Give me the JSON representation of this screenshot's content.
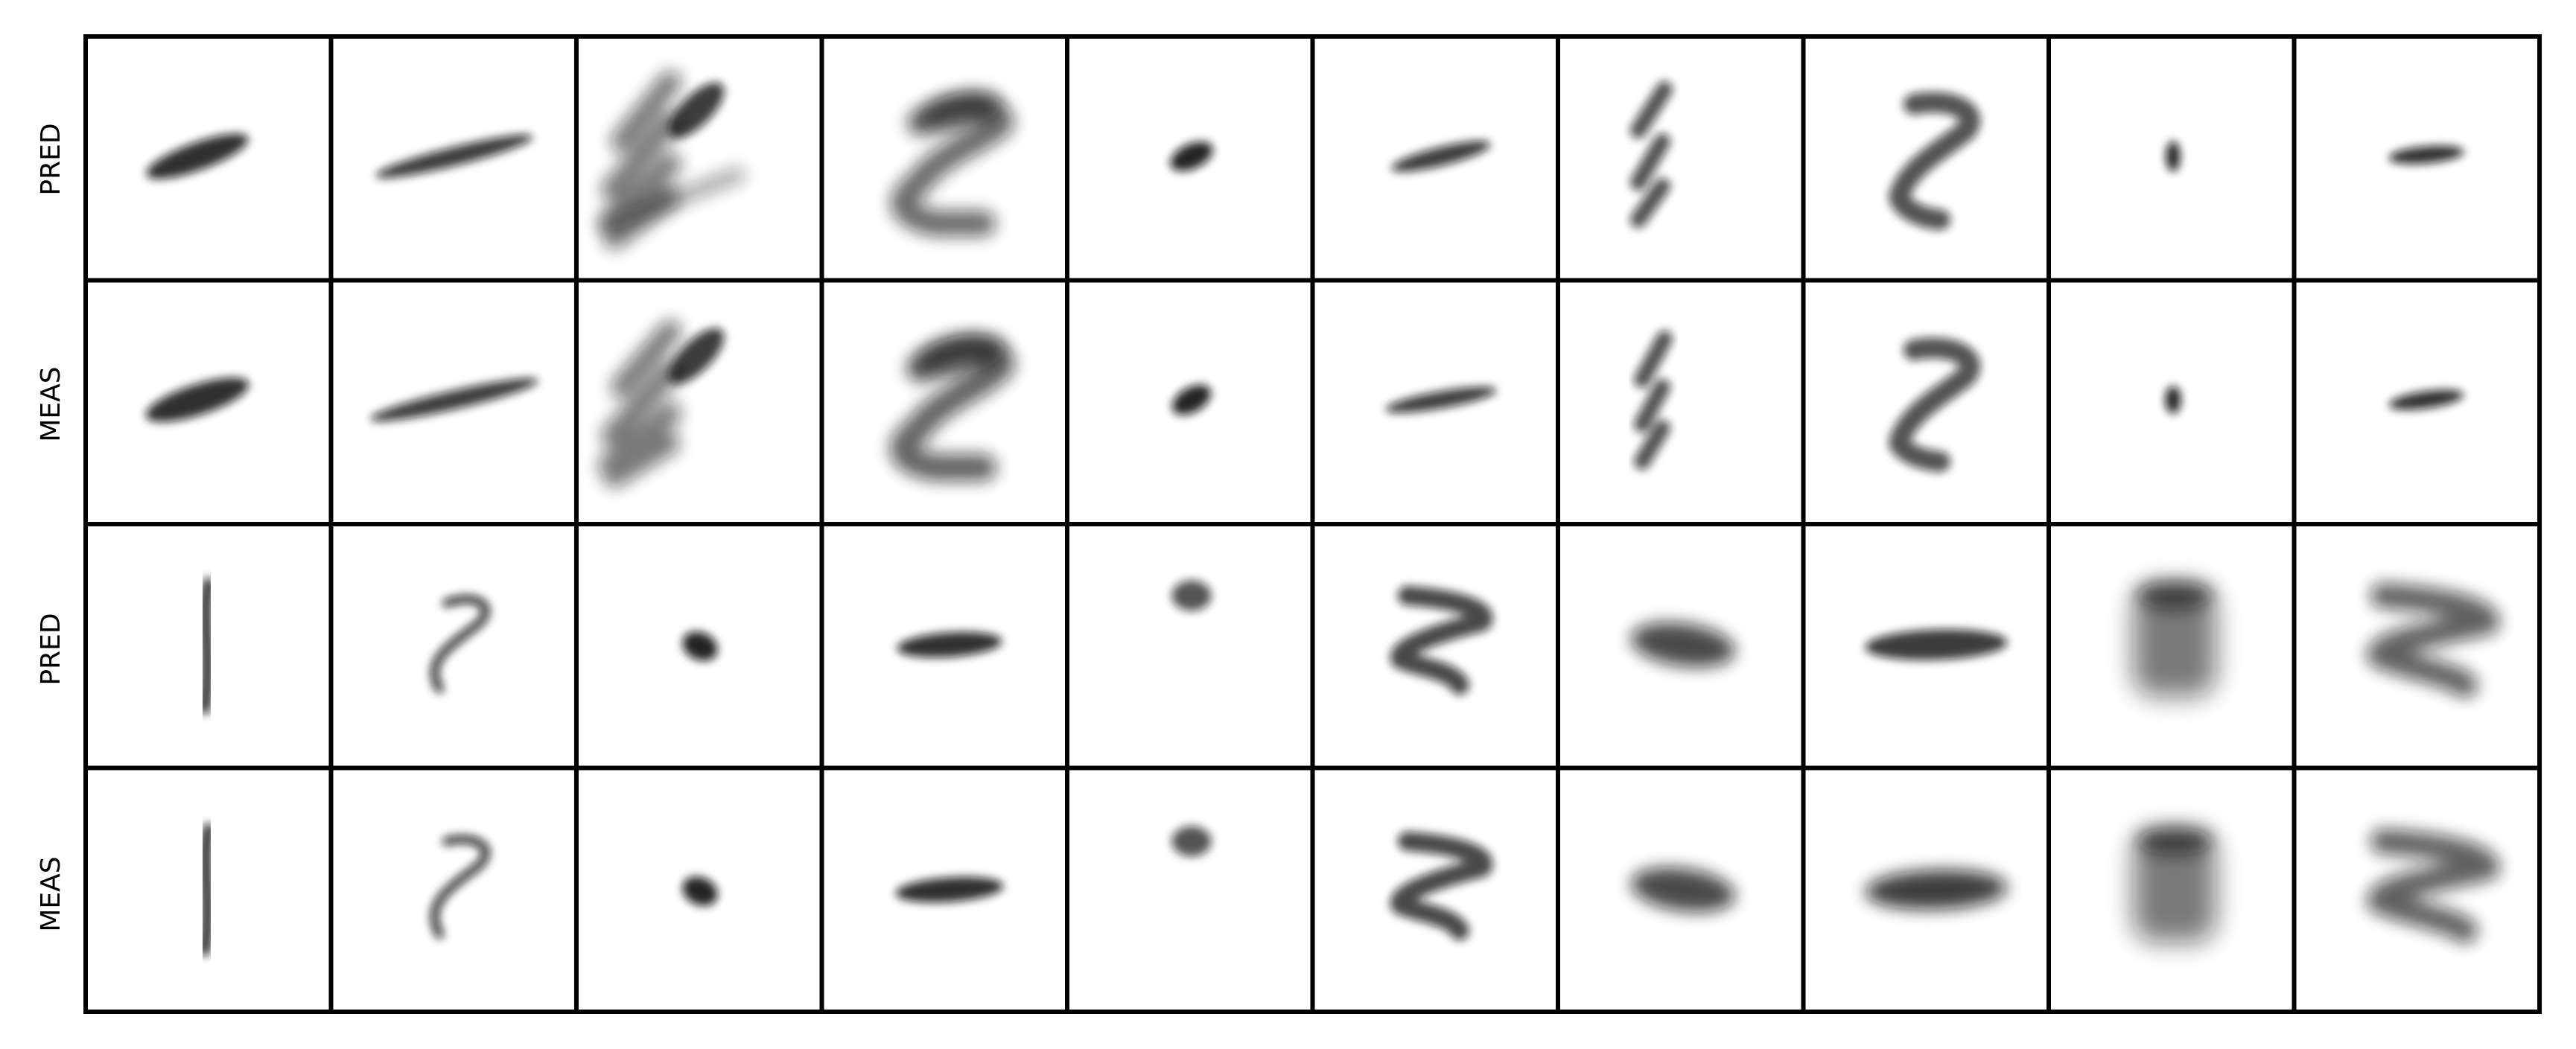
{
  "figure": {
    "row_labels": [
      "PRED",
      "MEAS",
      "PRED",
      "MEAS"
    ],
    "ink_color": "#111111",
    "border_color": "#000000",
    "background_color": "#ffffff",
    "grid_rows": 4,
    "grid_cols": 10
  }
}
